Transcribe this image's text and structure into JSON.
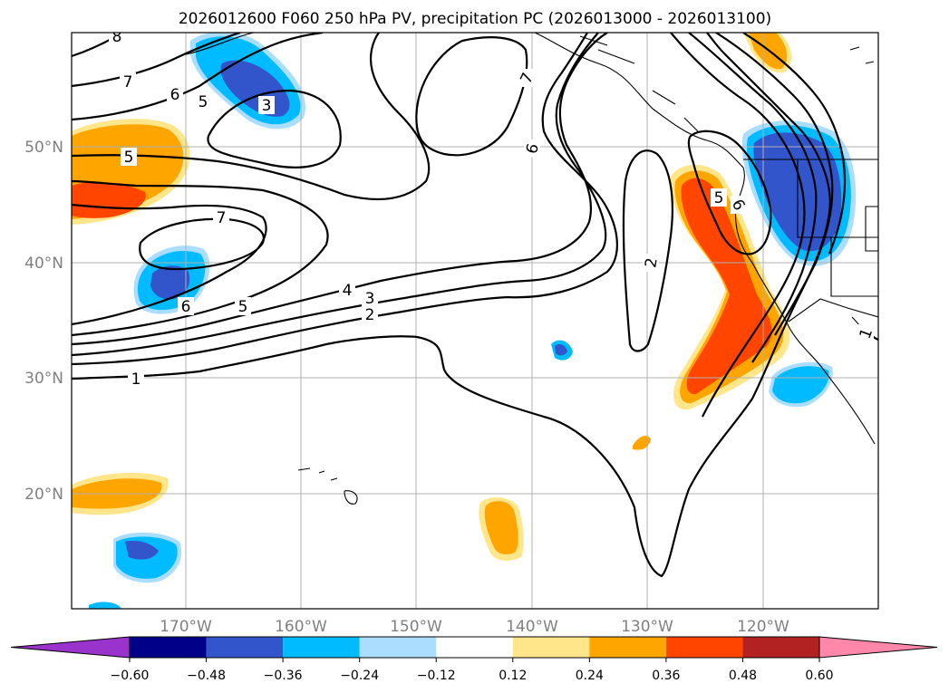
{
  "title": "2026012600 F060 250 hPa PV, precipitation PC (2026013000 - 2026013100)",
  "latitude_labels": [
    "50°N",
    "40°N",
    "30°N",
    "20°N"
  ],
  "longitude_labels": [
    "170°W",
    "160°W",
    "150°W",
    "140°W",
    "130°W",
    "120°W"
  ],
  "contour_labels": [
    "8",
    "7",
    "6",
    "5",
    "3",
    "5",
    "7",
    "6",
    "5",
    "4",
    "3",
    "2",
    "1",
    "7",
    "6",
    "6",
    "5",
    "2",
    "1"
  ],
  "colorbar": {
    "ticks": [
      "−0.60",
      "−0.48",
      "−0.36",
      "−0.24",
      "−0.12",
      "0.12",
      "0.24",
      "0.36",
      "0.48",
      "0.60"
    ],
    "colors": [
      "#9933cc",
      "#000088",
      "#3355cc",
      "#00bbff",
      "#aaddff",
      "#ffffff",
      "#ffe68a",
      "#ffa500",
      "#ff4500",
      "#b22222",
      "#ff88aa"
    ]
  }
}
